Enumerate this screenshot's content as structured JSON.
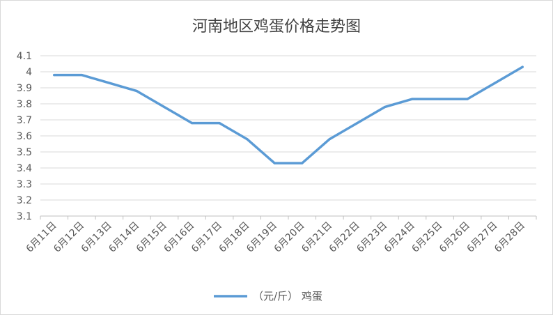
{
  "chart_data": {
    "type": "line",
    "title": "河南地区鸡蛋价格走势图",
    "categories": [
      "6月11日",
      "6月12日",
      "6月13日",
      "6月14日",
      "6月15日",
      "6月16日",
      "6月17日",
      "6月18日",
      "6月19日",
      "6月20日",
      "6月21日",
      "6月22日",
      "6月23日",
      "6月24日",
      "6月25日",
      "6月26日",
      "6月27日",
      "6月28日"
    ],
    "series": [
      {
        "name": "（元/斤）  鸡蛋",
        "values": [
          3.98,
          3.98,
          3.93,
          3.88,
          3.78,
          3.68,
          3.68,
          3.58,
          3.43,
          3.43,
          3.58,
          3.68,
          3.78,
          3.83,
          3.83,
          3.83,
          3.93,
          4.03
        ],
        "color": "#5b9bd5"
      }
    ],
    "yticks": [
      "3.1",
      "3.2",
      "3.3",
      "3.4",
      "3.5",
      "3.6",
      "3.7",
      "3.8",
      "3.9",
      "4",
      "4.1"
    ],
    "ylim": [
      3.1,
      4.1
    ],
    "grid": true,
    "legend_position": "bottom"
  }
}
